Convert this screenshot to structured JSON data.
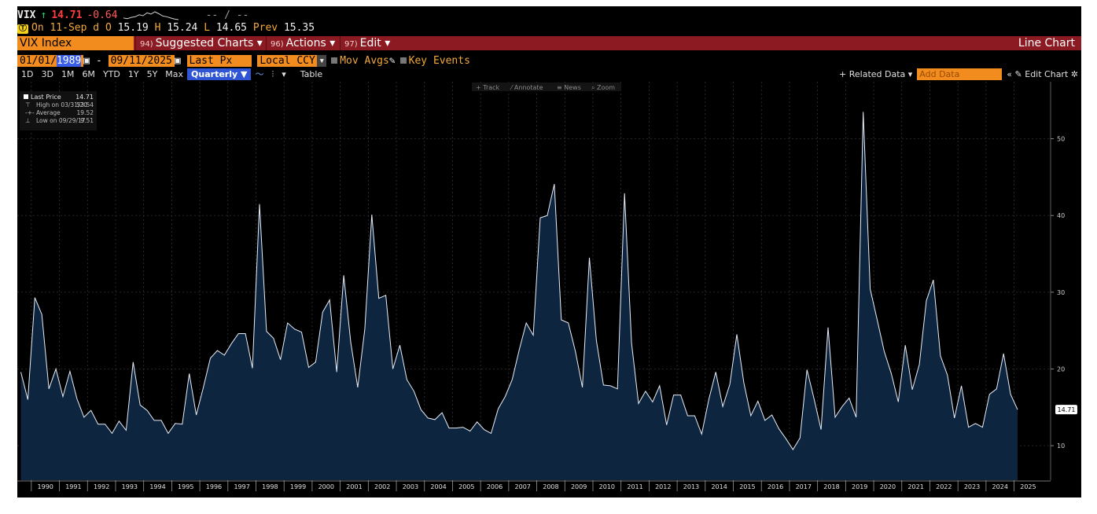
{
  "header": {
    "ticker": "VIX",
    "up_arrow": "↑",
    "last": "14.71",
    "change": "-0.64",
    "sparkline_values": [
      15.2,
      15.0,
      15.4,
      15.6,
      16.2,
      15.9,
      16.8,
      16.4,
      17.1,
      16.5,
      15.8,
      15.6,
      15.2,
      14.9,
      14.7
    ],
    "dash_text": "-- / --"
  },
  "quote": {
    "badge": "Ⓣ",
    "on_label": "On",
    "date": "11-Sep",
    "d_label": "d",
    "o_label": "O",
    "open": "15.19",
    "h_label": "H",
    "high": "15.24",
    "l_label": "L",
    "low": "14.65",
    "prev_label": "Prev",
    "prev": "15.35"
  },
  "menubar": {
    "title": "VIX Index",
    "menus": [
      {
        "num": "94)",
        "label": "Suggested Charts ▾"
      },
      {
        "num": "96)",
        "label": "Actions ▾"
      },
      {
        "num": "97)",
        "label": "Edit ▾"
      }
    ],
    "right_label": "Line Chart"
  },
  "controls": {
    "start_prefix": "01/01/",
    "start_year": "1989",
    "cal_icon": "▣",
    "dash": "-",
    "end_date": "09/11/2025",
    "field": "Last Px",
    "currency": "Local CCY",
    "dropdown": "▾",
    "mov_avgs": "Mov Avgs",
    "pencil": "✎",
    "key_events": "Key Events"
  },
  "toolbar": {
    "ranges": [
      "1D",
      "3D",
      "1M",
      "6M",
      "YTD",
      "1Y",
      "5Y",
      "Max"
    ],
    "frequency": "Quarterly ▼",
    "chart_icon": "〜",
    "candles_icon": "⫶",
    "more": "▾",
    "table": "Table",
    "related": "+ Related Data ▾",
    "add_data_placeholder": "Add Data",
    "collapse": "«",
    "edit_chart": "✎ Edit Chart",
    "gear": "✲"
  },
  "chart_tools": [
    "+ Track",
    "⁄ Annotate",
    "≡ News",
    "⌕ Zoom"
  ],
  "legend": {
    "rows": [
      {
        "label": "Last Price",
        "value": "14.71"
      },
      {
        "label": "High on 03/31/20",
        "value": "53.54"
      },
      {
        "label": "Average",
        "value": "19.52"
      },
      {
        "label": "Low on 09/29/17",
        "value": "9.51"
      }
    ]
  },
  "colors": {
    "background": "#000000",
    "line": "#e8eef8",
    "fill": "#0e2540",
    "grid": "#3a3a3a",
    "accent_orange": "#f28c1e",
    "menubar_red": "#8b1a22"
  },
  "chart_data": {
    "type": "area",
    "title": "",
    "xlabel": "",
    "ylabel": "",
    "frequency": "Quarterly",
    "x_start": "1989 Q3",
    "x_end": "2025 Q3",
    "xlim": [
      1989.5,
      2026.3
    ],
    "ylim": [
      5.5,
      56
    ],
    "yticks": [
      10,
      20,
      30,
      40,
      50
    ],
    "x_tick_labels": [
      "1990",
      "1991",
      "1992",
      "1993",
      "1994",
      "1995",
      "1996",
      "1997",
      "1998",
      "1999",
      "2000",
      "2001",
      "2002",
      "2003",
      "2004",
      "2005",
      "2006",
      "2007",
      "2008",
      "2009",
      "2010",
      "2011",
      "2012",
      "2013",
      "2014",
      "2015",
      "2016",
      "2017",
      "2018",
      "2019",
      "2020",
      "2021",
      "2022",
      "2023",
      "2024",
      "2025"
    ],
    "last_value_label": "14.71",
    "grid": true,
    "series": [
      {
        "values": [
          19.6,
          16.0,
          29.3,
          27.1,
          17.4,
          20.0,
          16.4,
          19.7,
          16.1,
          13.7,
          14.6,
          12.8,
          12.8,
          11.6,
          13.2,
          12.0,
          20.9,
          15.3,
          14.6,
          13.3,
          13.3,
          11.6,
          12.9,
          12.8,
          19.4,
          14.0,
          17.6,
          21.4,
          22.4,
          21.8,
          23.3,
          24.6,
          24.6,
          20.1,
          41.5,
          24.9,
          24.0,
          21.2,
          26.0,
          25.2,
          24.8,
          20.2,
          20.9,
          27.4,
          29.0,
          19.6,
          32.2,
          23.5,
          17.6,
          25.2,
          40.1,
          29.2,
          29.6,
          20.0,
          23.1,
          18.6,
          17.1,
          14.7,
          13.6,
          13.4,
          14.3,
          12.3,
          12.3,
          12.4,
          11.9,
          13.1,
          12.1,
          11.6,
          14.8,
          16.4,
          18.6,
          22.5,
          26.0,
          24.4,
          39.7,
          40.0,
          44.1,
          26.4,
          26.0,
          22.3,
          17.6,
          34.5,
          23.7,
          17.9,
          17.8,
          17.4,
          42.9,
          23.4,
          15.5,
          17.1,
          15.7,
          17.8,
          12.7,
          16.6,
          16.6,
          13.9,
          13.9,
          11.5,
          16.0,
          19.6,
          15.1,
          18.0,
          24.5,
          18.2,
          13.9,
          15.8,
          13.3,
          14.0,
          12.2,
          10.9,
          9.5,
          11.0,
          19.9,
          16.1,
          12.1,
          25.4,
          13.7,
          15.1,
          16.2,
          13.7,
          53.5,
          30.4,
          26.4,
          22.3,
          19.4,
          15.7,
          23.1,
          17.3,
          20.6,
          28.9,
          31.6,
          21.7,
          19.2,
          13.6,
          17.8,
          12.4,
          12.9,
          12.4,
          16.7,
          17.4,
          22.0,
          16.7,
          14.7
        ]
      }
    ]
  }
}
